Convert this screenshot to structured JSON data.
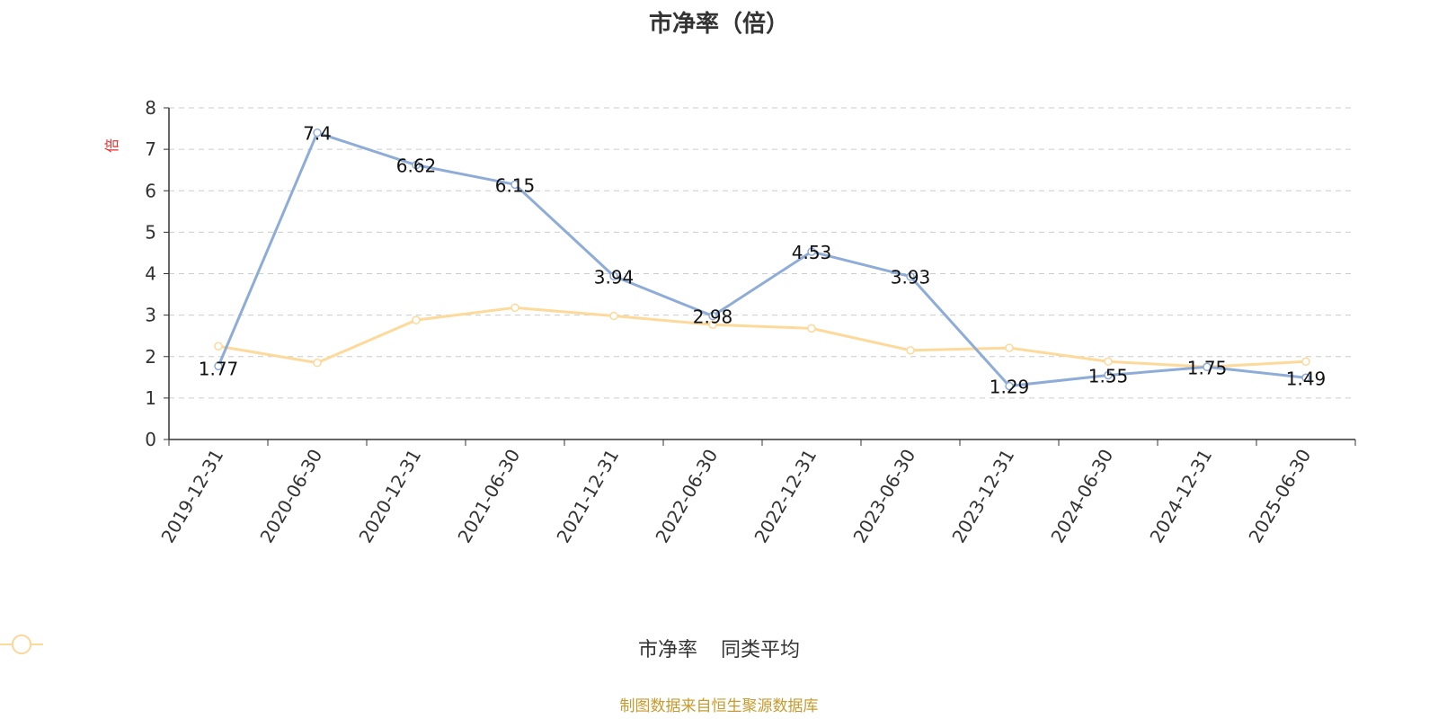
{
  "chart_data": {
    "type": "line",
    "title": "市净率（倍）",
    "ylabel": "倍",
    "xlabel": "",
    "ylim": [
      0,
      8
    ],
    "yticks": [
      0,
      1,
      2,
      3,
      4,
      5,
      6,
      7,
      8
    ],
    "grid": true,
    "legend_position": "bottom-center",
    "categories": [
      "2019-12-31",
      "2020-06-30",
      "2020-12-31",
      "2021-06-30",
      "2021-12-31",
      "2022-06-30",
      "2022-12-31",
      "2023-06-30",
      "2023-12-31",
      "2024-06-30",
      "2024-12-31",
      "2025-06-30"
    ],
    "series": [
      {
        "name": "市净率",
        "color": "#8eacd8",
        "values": [
          1.77,
          7.4,
          6.62,
          6.15,
          3.94,
          2.98,
          4.53,
          3.93,
          1.29,
          1.55,
          1.75,
          1.49
        ],
        "labels": [
          "1.77",
          "7.4",
          "6.62",
          "6.15",
          "3.94",
          "2.98",
          "4.53",
          "3.93",
          "1.29",
          "1.55",
          "1.75",
          "1.49"
        ]
      },
      {
        "name": "同类平均",
        "color": "#fdd99a",
        "values": [
          2.25,
          1.85,
          2.88,
          3.18,
          2.98,
          2.77,
          2.68,
          2.15,
          2.21,
          1.88,
          1.75,
          1.88
        ]
      }
    ]
  },
  "source_text": "制图数据来自恒生聚源数据库",
  "colors": {
    "source_text": "#c89a2e",
    "axis_name": "#e03030",
    "axis": "#333333",
    "grid": "#cccccc"
  }
}
